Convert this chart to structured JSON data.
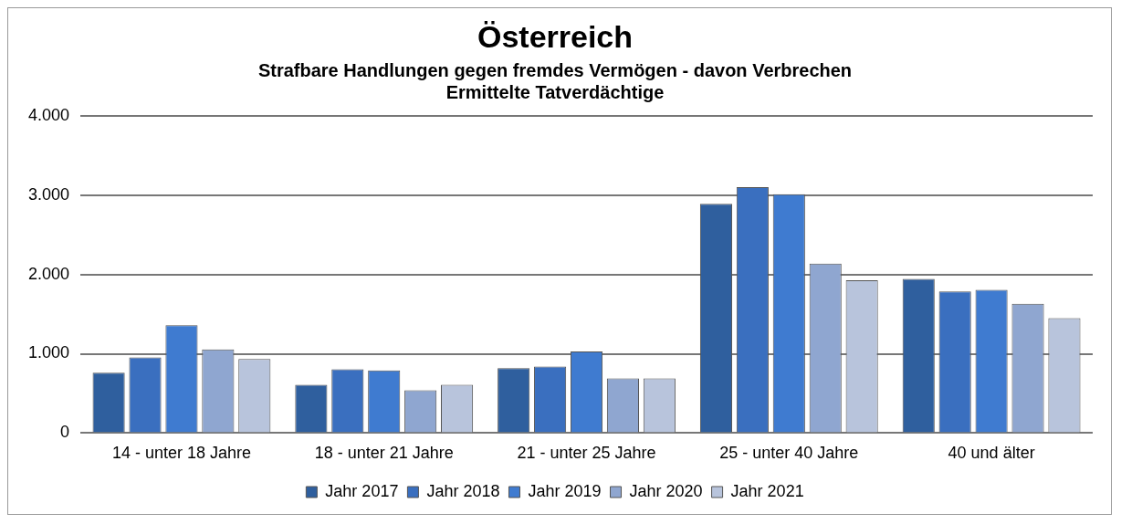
{
  "chart_data": {
    "type": "bar",
    "title": "Österreich",
    "subtitle": "Strafbare Handlungen gegen fremdes Vermögen - davon Verbrechen\nErmittelte Tatverdächtige",
    "categories": [
      "14 - unter 18 Jahre",
      "18 - unter 21 Jahre",
      "21 - unter 25 Jahre",
      "25 - unter 40 Jahre",
      "40 und älter"
    ],
    "series": [
      {
        "name": "Jahr 2017",
        "color": "#2f5f9e",
        "values": [
          760,
          610,
          820,
          2890,
          1945
        ]
      },
      {
        "name": "Jahr 2018",
        "color": "#3a6fbf",
        "values": [
          955,
          805,
          840,
          3100,
          1785
        ]
      },
      {
        "name": "Jahr 2019",
        "color": "#3f7bd0",
        "values": [
          1360,
          790,
          1030,
          3010,
          1805
        ]
      },
      {
        "name": "Jahr 2020",
        "color": "#8fa6d0",
        "values": [
          1055,
          540,
          690,
          2135,
          1630
        ]
      },
      {
        "name": "Jahr 2021",
        "color": "#b8c4dc",
        "values": [
          935,
          610,
          690,
          1925,
          1450
        ]
      }
    ],
    "ylim": [
      0,
      4000
    ],
    "yticks": [
      {
        "value": 0,
        "label": "0"
      },
      {
        "value": 1000,
        "label": "1.000"
      },
      {
        "value": 2000,
        "label": "2.000"
      },
      {
        "value": 3000,
        "label": "3.000"
      },
      {
        "value": 4000,
        "label": "4.000"
      }
    ],
    "grid": "y",
    "legend": "bottom"
  }
}
